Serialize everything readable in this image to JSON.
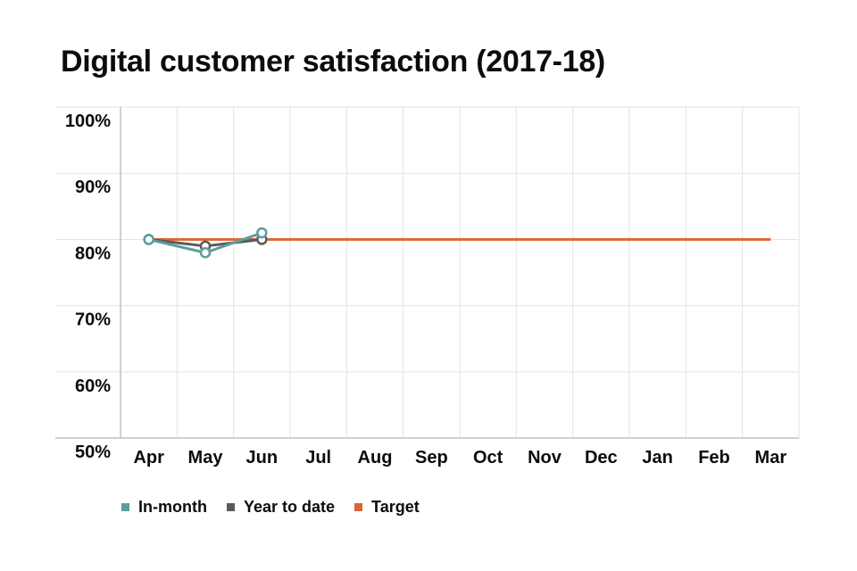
{
  "chart_data": {
    "type": "line",
    "title": "Digital customer satisfaction (2017-18)",
    "xlabel": "",
    "ylabel": "",
    "categories": [
      "Apr",
      "May",
      "Jun",
      "Jul",
      "Aug",
      "Sep",
      "Oct",
      "Nov",
      "Dec",
      "Jan",
      "Feb",
      "Mar"
    ],
    "y_ticks": [
      "50%",
      "60%",
      "70%",
      "80%",
      "90%",
      "100%"
    ],
    "ylim": [
      50,
      100
    ],
    "grid": true,
    "legend_position": "bottom-left",
    "series": [
      {
        "name": "In-month",
        "color": "#5b9ea0",
        "marker": "circle",
        "values": [
          80,
          78,
          81,
          null,
          null,
          null,
          null,
          null,
          null,
          null,
          null,
          null
        ]
      },
      {
        "name": "Year to date",
        "color": "#5a5a5a",
        "marker": "circle",
        "values": [
          80,
          79,
          80,
          null,
          null,
          null,
          null,
          null,
          null,
          null,
          null,
          null
        ]
      },
      {
        "name": "Target",
        "color": "#dd6434",
        "marker": "none",
        "values": [
          80,
          80,
          80,
          80,
          80,
          80,
          80,
          80,
          80,
          80,
          80,
          80
        ]
      }
    ]
  }
}
